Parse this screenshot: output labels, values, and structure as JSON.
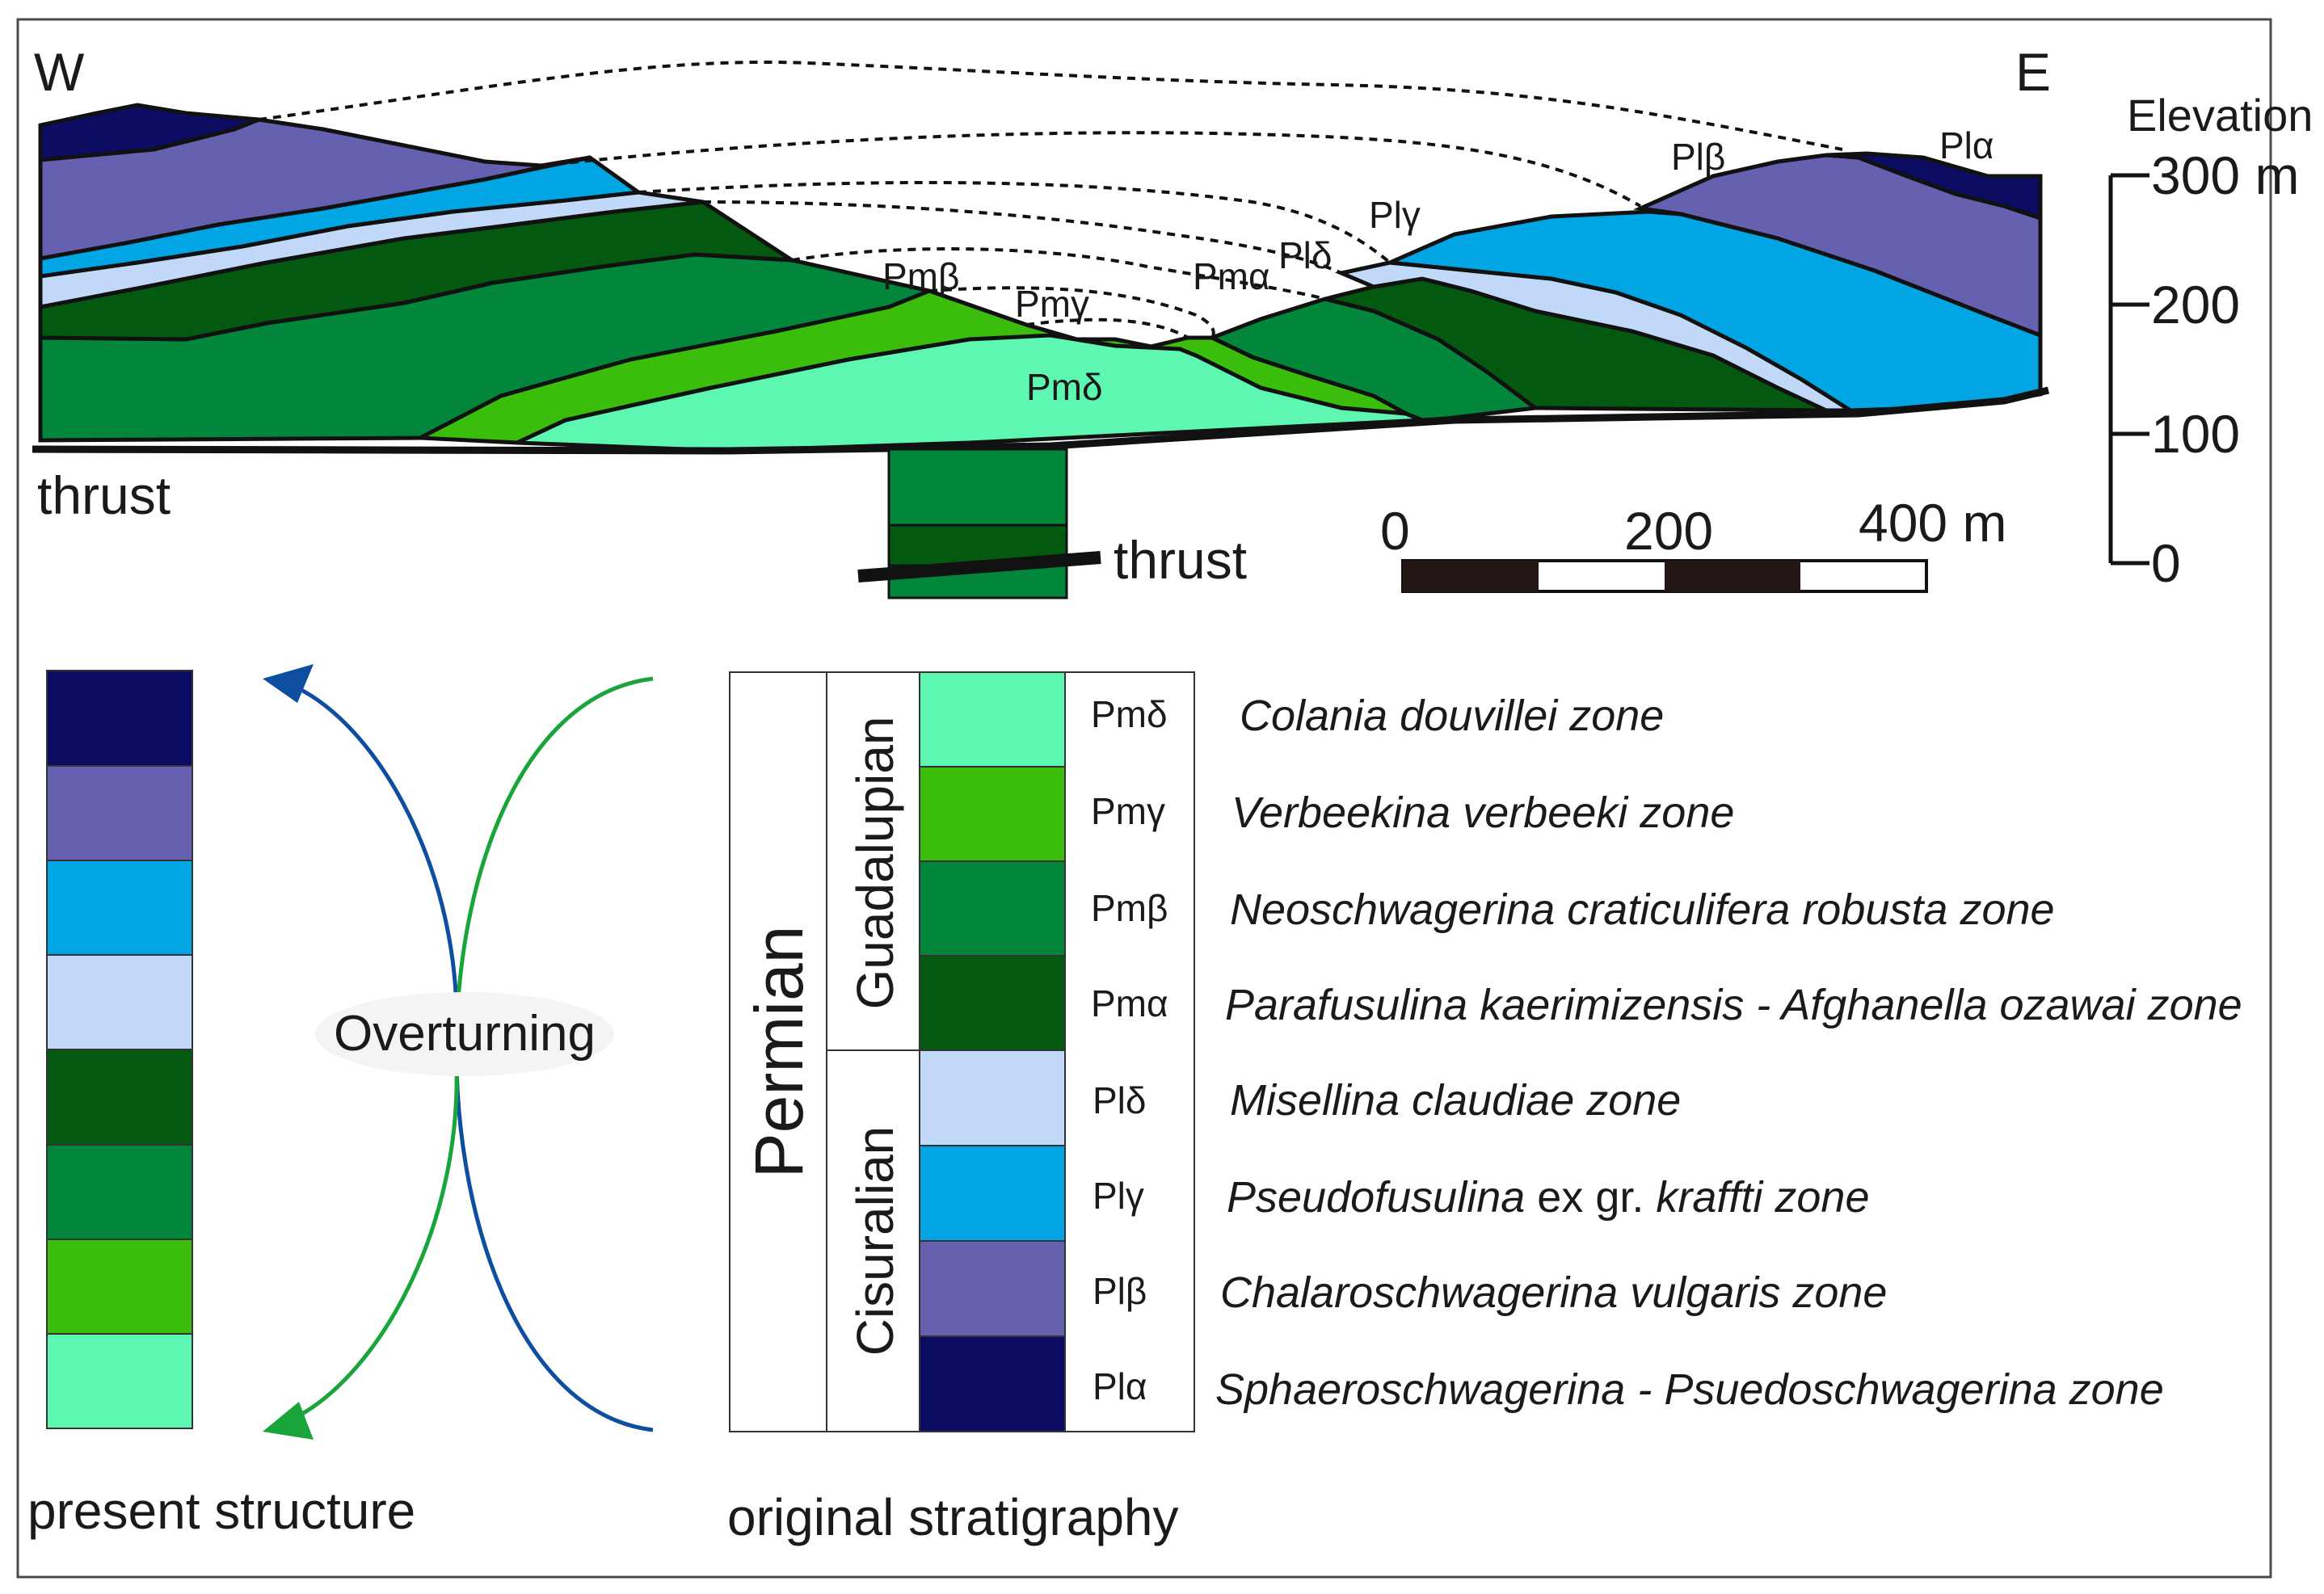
{
  "colors": {
    "Pl_alpha": "#0c0c63",
    "Pl_beta": "#6560b0",
    "Pl_gamma": "#02a5e3",
    "Pl_delta": "#c2d8f8",
    "Pm_alpha": "#045910",
    "Pm_beta": "#02863c",
    "Pm_gamma": "#3bbd0c",
    "Pm_delta": "#5ef7b2",
    "arrow_blue": "#0e4ea1",
    "arrow_green": "#1aa53a"
  },
  "cross_section": {
    "west_label": "W",
    "east_label": "E",
    "thrust_left": "thrust",
    "thrust_bottom": "thrust",
    "unit_labels": {
      "pm_beta": "Pmβ",
      "pm_gamma": "Pmγ",
      "pm_alpha": "Pmα",
      "pl_delta": "Plδ",
      "pl_gamma": "Plγ",
      "pl_beta": "Plβ",
      "pl_alpha": "Plα",
      "pm_delta": "Pmδ"
    }
  },
  "elevation": {
    "title": "Elevation",
    "ticks": [
      "300 m",
      "200",
      "100",
      "0"
    ]
  },
  "scale_bar": {
    "labels": [
      "0",
      "200",
      "400 m"
    ]
  },
  "present_structure": {
    "caption": "present structure",
    "units": [
      "Plα",
      "Plβ",
      "Plγ",
      "Plδ",
      "Pmα",
      "Pmβ",
      "Pmγ",
      "Pmδ"
    ]
  },
  "overturning_label": "Overturning",
  "original_stratigraphy": {
    "caption": "original stratigraphy",
    "system": "Permian",
    "series": [
      "Guadalupian",
      "Cisuralian"
    ],
    "units": [
      {
        "code": "Pmδ",
        "zone": "Colania douvillei zone"
      },
      {
        "code": "Pmγ",
        "zone": "Verbeekina verbeeki zone"
      },
      {
        "code": "Pmβ",
        "zone": "Neoschwagerina craticulifera robusta zone"
      },
      {
        "code": "Pmα",
        "zone": "Parafusulina kaerimizensis - Afghanella ozawai zone"
      },
      {
        "code": "Plδ",
        "zone": "Misellina claudiae zone"
      },
      {
        "code": "Plγ",
        "zone_italic": "Pseudofusulina",
        "zone_upright": " ex gr. ",
        "zone_tail": "kraffti zone"
      },
      {
        "code": "Plβ",
        "zone": "Chalaroschwagerina vulgaris zone"
      },
      {
        "code": "Plα",
        "zone": "Sphaeroschwagerina - Psuedoschwagerina zone"
      }
    ]
  }
}
